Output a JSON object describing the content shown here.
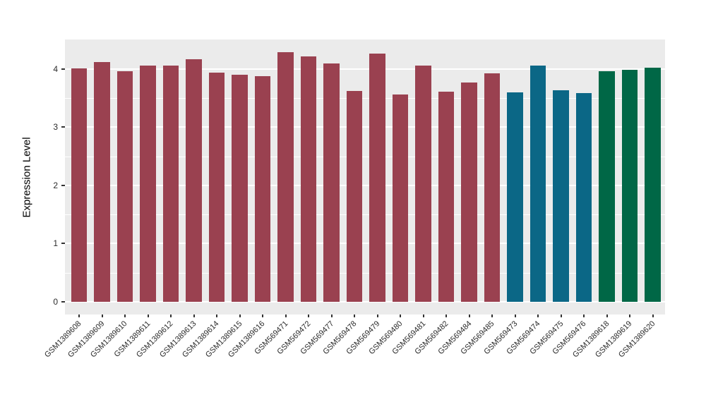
{
  "chart_data": {
    "type": "bar",
    "title": "",
    "xlabel": "",
    "ylabel": "Expression Level",
    "ylim": [
      0,
      4.5
    ],
    "yticks": [
      0,
      1,
      2,
      3,
      4
    ],
    "y_minor_ticks": [
      0.5,
      1.5,
      2.5,
      3.5
    ],
    "grid": "on",
    "legend_position": "none",
    "panel_background": "#EBEBEB",
    "gridline_color": "#FFFFFF",
    "axis_text_color": "#2b2b2b",
    "categories": [
      "GSM1389608",
      "GSM1389609",
      "GSM1389610",
      "GSM1389611",
      "GSM1389612",
      "GSM1389613",
      "GSM1389614",
      "GSM1389615",
      "GSM1389616",
      "GSM569471",
      "GSM569472",
      "GSM569477",
      "GSM569478",
      "GSM569479",
      "GSM569480",
      "GSM569481",
      "GSM569482",
      "GSM569484",
      "GSM569485",
      "GSM569473",
      "GSM569474",
      "GSM569475",
      "GSM569476",
      "GSM1389618",
      "GSM1389619",
      "GSM1389620"
    ],
    "values": [
      4.01,
      4.12,
      3.96,
      4.06,
      4.06,
      4.17,
      3.94,
      3.9,
      3.88,
      4.29,
      4.21,
      4.09,
      3.62,
      4.27,
      3.56,
      4.06,
      3.61,
      3.77,
      3.92,
      3.6,
      4.06,
      3.63,
      3.58,
      3.96,
      3.99,
      4.02
    ],
    "bar_colors": [
      "#9A4150",
      "#9A4150",
      "#9A4150",
      "#9A4150",
      "#9A4150",
      "#9A4150",
      "#9A4150",
      "#9A4150",
      "#9A4150",
      "#9A4150",
      "#9A4150",
      "#9A4150",
      "#9A4150",
      "#9A4150",
      "#9A4150",
      "#9A4150",
      "#9A4150",
      "#9A4150",
      "#9A4150",
      "#0B6786",
      "#0B6786",
      "#0B6786",
      "#0B6786",
      "#006746",
      "#006746",
      "#006746"
    ],
    "color_groups": [
      {
        "color": "#9A4150",
        "bar_count": 19
      },
      {
        "color": "#0B6786",
        "bar_count": 4
      },
      {
        "color": "#006746",
        "bar_count": 3
      }
    ]
  }
}
